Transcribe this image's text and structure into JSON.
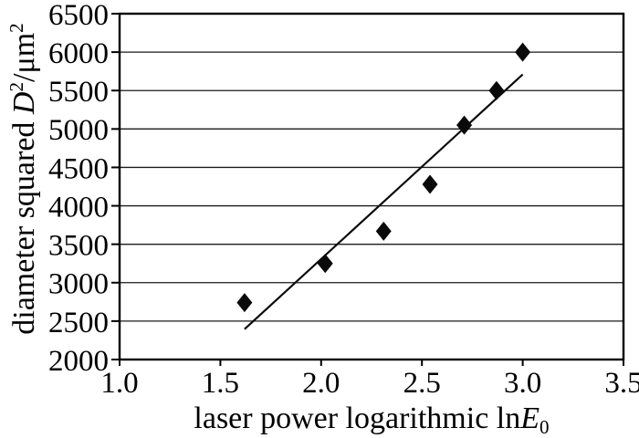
{
  "figure": {
    "description": "scatter plot of squared crater diameter versus logarithmic laser power with linear fit",
    "background_color": "#ffffff",
    "axis_color": "#000000",
    "grid_color": "#1a1a1a",
    "marker_color": "#0a0a0a"
  },
  "chart_data": {
    "type": "scatter",
    "title": "",
    "xlabel": "laser power logarithmic lnE₀",
    "xlabel_parts": {
      "prefix": "laser power logarithmic ln",
      "italic_var": "E",
      "subscript": "0"
    },
    "ylabel": "diameter squared D²/μm²",
    "ylabel_parts": {
      "prefix": "diameter squared ",
      "italic_var": "D",
      "superscript": "2",
      "unit": "/μm",
      "unit_superscript": "2"
    },
    "xlim": [
      1.0,
      3.5
    ],
    "ylim": [
      2000,
      6500
    ],
    "x_ticks": [
      1.0,
      1.5,
      2.0,
      2.5,
      3.0,
      3.5
    ],
    "x_tick_labels": [
      "1.0",
      "1.5",
      "2.0",
      "2.5",
      "3.0",
      "3.5"
    ],
    "y_ticks": [
      2000,
      2500,
      3000,
      3500,
      4000,
      4500,
      5000,
      5500,
      6000,
      6500
    ],
    "y_tick_labels": [
      "2000",
      "2500",
      "3000",
      "3500",
      "4000",
      "4500",
      "5000",
      "5500",
      "6000",
      "6500"
    ],
    "grid": "horizontal",
    "legend": "none",
    "series": [
      {
        "name": "measured-points",
        "type": "scatter",
        "marker": "diamond",
        "color": "#0a0a0a",
        "points": [
          [
            1.62,
            2740
          ],
          [
            2.02,
            3250
          ],
          [
            2.31,
            3670
          ],
          [
            2.54,
            4280
          ],
          [
            2.71,
            5050
          ],
          [
            2.87,
            5500
          ],
          [
            3.0,
            6000
          ]
        ]
      },
      {
        "name": "linear-fit",
        "type": "line",
        "color": "#0a0a0a",
        "points": [
          [
            1.62,
            2395
          ],
          [
            3.0,
            5710
          ]
        ]
      }
    ]
  }
}
